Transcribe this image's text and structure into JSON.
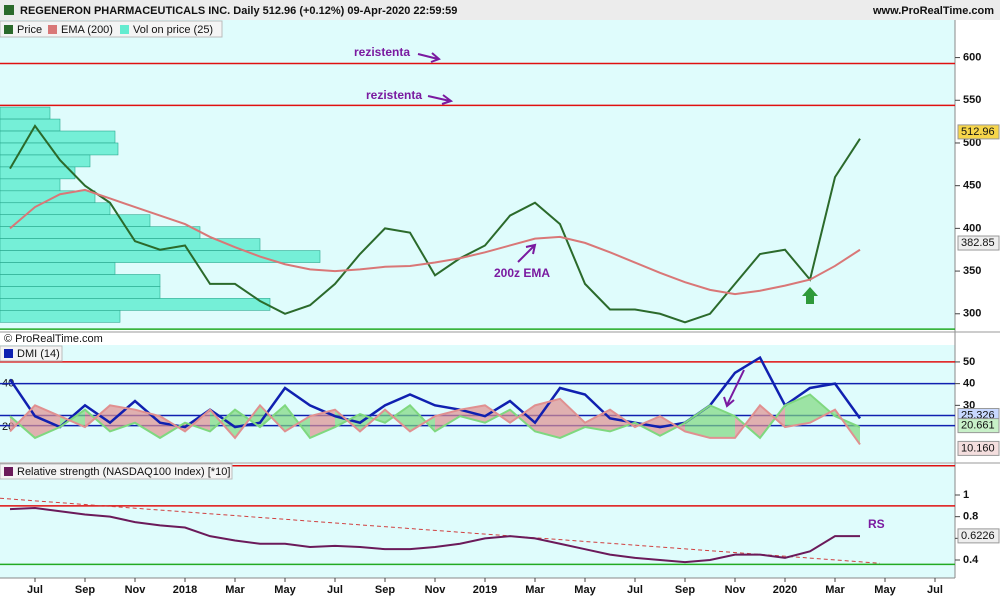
{
  "header": {
    "title": "REGENERON PHARMACEUTICALS INC. Daily 512.96 (+0.12%) 09-Apr-2020 22:59:59",
    "site": "www.ProRealTime.com",
    "copyright": "© ProRealTime.com"
  },
  "chart_data": [
    {
      "type": "line",
      "x": [
        -1,
        0,
        1,
        2,
        3,
        4,
        5,
        6,
        7,
        8,
        9,
        10,
        11,
        12,
        13,
        14,
        15,
        16,
        17,
        18,
        19,
        20,
        21,
        22,
        23,
        24,
        25,
        26,
        27,
        28,
        29,
        30,
        31,
        32,
        33
      ],
      "xlim": [
        -1.4,
        36.8
      ],
      "ylim": [
        281,
        644
      ],
      "yticks": [
        300,
        350,
        400,
        450,
        500,
        550,
        600
      ],
      "series": [
        {
          "name": "Price",
          "color": "#2b6a2b",
          "values": [
            470,
            520,
            480,
            450,
            430,
            385,
            375,
            380,
            335,
            335,
            315,
            300,
            310,
            335,
            370,
            400,
            395,
            345,
            365,
            380,
            415,
            430,
            405,
            335,
            305,
            305,
            300,
            290,
            300,
            335,
            370,
            375,
            340,
            460,
            505
          ]
        },
        {
          "name": "EMA (200)",
          "color": "#d97777",
          "values": [
            400,
            425,
            440,
            445,
            435,
            425,
            415,
            405,
            390,
            378,
            367,
            358,
            352,
            350,
            352,
            355,
            356,
            360,
            365,
            372,
            380,
            388,
            390,
            383,
            372,
            360,
            348,
            337,
            328,
            323,
            327,
            333,
            340,
            356,
            375
          ]
        }
      ],
      "volume_profile": {
        "name": "Vol on price (25)",
        "color": "#63ecd0",
        "levels": [
          535,
          521,
          507,
          493,
          479,
          465,
          451,
          437,
          423,
          409,
          395,
          381,
          367,
          353,
          339,
          325,
          311,
          297
        ],
        "values": [
          50,
          60,
          115,
          118,
          90,
          75,
          60,
          95,
          110,
          150,
          200,
          260,
          320,
          115,
          160,
          160,
          270,
          120
        ]
      },
      "hlines": [
        {
          "value": 593,
          "color": "#e01010"
        },
        {
          "value": 544,
          "color": "#e01010"
        },
        {
          "value": 282,
          "color": "#22aa22"
        }
      ],
      "tags": [
        {
          "value": 512.96,
          "color": "#f6d54a"
        },
        {
          "value": 382.85,
          "color": "#eeeeee"
        }
      ],
      "annotations": [
        "rezistenta",
        "rezistenta",
        "200z EMA"
      ]
    },
    {
      "type": "dmi",
      "title": "DMI (14)",
      "x": [
        -1,
        0,
        1,
        2,
        3,
        4,
        5,
        6,
        7,
        8,
        9,
        10,
        11,
        12,
        13,
        14,
        15,
        16,
        17,
        18,
        19,
        20,
        21,
        22,
        23,
        24,
        25,
        26,
        27,
        28,
        29,
        30,
        31,
        32,
        33
      ],
      "xlim": [
        -1.4,
        36.8
      ],
      "ylim": [
        3.9,
        57.8
      ],
      "yticks": [
        30,
        40,
        50
      ],
      "left_ticks": [
        40,
        20
      ],
      "series": [
        {
          "color": "#1020b0",
          "values": [
            42,
            25,
            20,
            30,
            22,
            32,
            22,
            20,
            28,
            20,
            22,
            38,
            30,
            25,
            22,
            30,
            35,
            30,
            28,
            25,
            32,
            22,
            38,
            35,
            24,
            22,
            20,
            22,
            30,
            45,
            52,
            30,
            38,
            40,
            24
          ]
        },
        {
          "color": "#7fd87f",
          "values": [
            25,
            15,
            20,
            28,
            18,
            22,
            15,
            22,
            18,
            28,
            20,
            30,
            15,
            20,
            26,
            22,
            30,
            18,
            25,
            22,
            28,
            18,
            15,
            20,
            18,
            22,
            16,
            22,
            30,
            25,
            15,
            30,
            35,
            25,
            20
          ]
        },
        {
          "color": "#e09090",
          "values": [
            18,
            30,
            25,
            20,
            30,
            28,
            25,
            18,
            28,
            15,
            30,
            18,
            25,
            28,
            18,
            28,
            18,
            25,
            28,
            30,
            22,
            30,
            33,
            22,
            28,
            20,
            25,
            18,
            15,
            15,
            30,
            20,
            22,
            28,
            12
          ]
        }
      ],
      "hlines": [
        {
          "value": 50,
          "color": "#e01010"
        },
        {
          "value": 40,
          "color": "#1020b0"
        },
        {
          "value": 25.326,
          "color": "#1020b0"
        },
        {
          "value": 20.661,
          "color": "#1020b0"
        }
      ],
      "tags": [
        {
          "value": 25.326,
          "color": "#c8d8ff"
        },
        {
          "value": 20.661,
          "color": "#c8f0c8"
        },
        {
          "value": {
            "value": 10.16,
            "label": "10.160"
          },
          "color": "#f4dede"
        }
      ]
    },
    {
      "type": "line",
      "title": "Relative strength (NASDAQ100 Index) [*10]",
      "x": [
        -1,
        0,
        1,
        2,
        3,
        4,
        5,
        6,
        7,
        8,
        9,
        10,
        11,
        12,
        13,
        14,
        15,
        16,
        17,
        18,
        19,
        20,
        21,
        22,
        23,
        24,
        25,
        26,
        27,
        28,
        29,
        30,
        31,
        32,
        33
      ],
      "xlim": [
        -1.4,
        36.8
      ],
      "ylim": [
        0.234,
        1.286
      ],
      "yticks": [
        0.4,
        0.6,
        0.8,
        1
      ],
      "xticks": [
        {
          "value": 0,
          "label": "Jul"
        },
        {
          "value": 2,
          "label": "Sep"
        },
        {
          "value": 4,
          "label": "Nov"
        },
        {
          "value": 6,
          "label": "2018"
        },
        {
          "value": 8,
          "label": "Mar"
        },
        {
          "value": 10,
          "label": "May"
        },
        {
          "value": 12,
          "label": "Jul"
        },
        {
          "value": 14,
          "label": "Sep"
        },
        {
          "value": 16,
          "label": "Nov"
        },
        {
          "value": 18,
          "label": "2019"
        },
        {
          "value": 20,
          "label": "Mar"
        },
        {
          "value": 22,
          "label": "May"
        },
        {
          "value": 24,
          "label": "Jul"
        },
        {
          "value": 26,
          "label": "Sep"
        },
        {
          "value": 28,
          "label": "Nov"
        },
        {
          "value": 30,
          "label": "2020"
        },
        {
          "value": 32,
          "label": "Mar"
        },
        {
          "value": 34,
          "label": "May"
        },
        {
          "value": 36,
          "label": "Jul"
        }
      ],
      "series": [
        {
          "color": "#6b1a5a",
          "values": [
            0.87,
            0.88,
            0.85,
            0.82,
            0.8,
            0.75,
            0.72,
            0.7,
            0.62,
            0.58,
            0.55,
            0.55,
            0.52,
            0.53,
            0.52,
            0.5,
            0.5,
            0.52,
            0.55,
            0.6,
            0.62,
            0.6,
            0.55,
            0.5,
            0.45,
            0.42,
            0.4,
            0.38,
            0.4,
            0.45,
            0.45,
            0.42,
            0.48,
            0.62,
            0.62
          ]
        }
      ],
      "trendline": {
        "color": "#d04040",
        "x": [
          -1.4,
          33.8
        ],
        "values": [
          0.97,
          0.37
        ]
      },
      "hlines": [
        {
          "value": 1.27,
          "color": "#e01010"
        },
        {
          "value": 0.9,
          "color": "#e01010"
        },
        {
          "value": 0.36,
          "color": "#22aa22"
        }
      ],
      "tags": [
        {
          "value": 0.6226,
          "color": "#eeeeee"
        }
      ],
      "annotations": [
        "RS"
      ]
    }
  ]
}
